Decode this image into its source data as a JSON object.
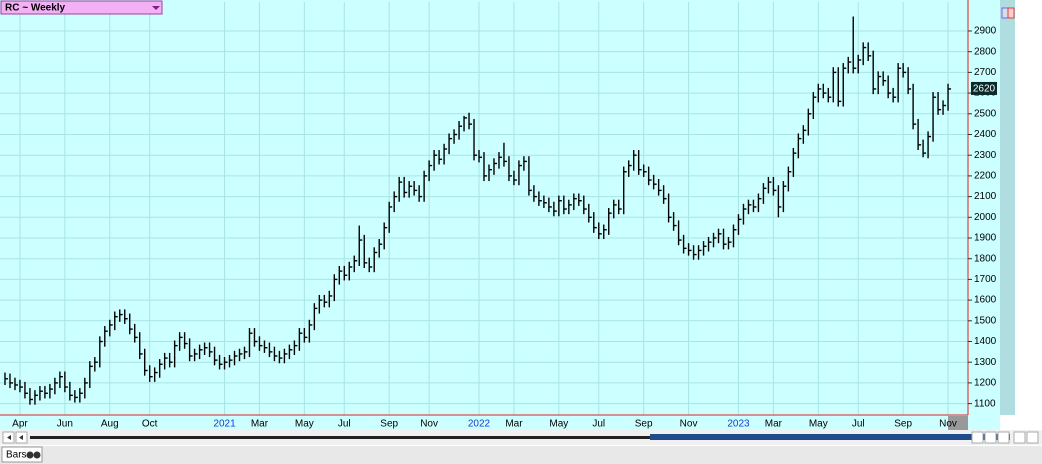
{
  "chart_data": {
    "type": "ohlc",
    "title": "RC ~ Weekly",
    "color": "#000000",
    "grid": true,
    "xlim": [
      -1,
      193
    ],
    "ylim": [
      1045,
      3040
    ],
    "yticks": [
      1100,
      1200,
      1300,
      1400,
      1500,
      1600,
      1700,
      1800,
      1900,
      2000,
      2100,
      2200,
      2300,
      2400,
      2500,
      2600,
      2700,
      2800,
      2900
    ],
    "xticks": [
      {
        "value": 3,
        "label": "Apr"
      },
      {
        "value": 12,
        "label": "Jun"
      },
      {
        "value": 21,
        "label": "Aug"
      },
      {
        "value": 29,
        "label": "Oct"
      },
      {
        "value": 44,
        "label": "2021"
      },
      {
        "value": 51,
        "label": "Mar"
      },
      {
        "value": 60,
        "label": "May"
      },
      {
        "value": 68,
        "label": "Jul"
      },
      {
        "value": 77,
        "label": "Sep"
      },
      {
        "value": 85,
        "label": "Nov"
      },
      {
        "value": 95,
        "label": "2022"
      },
      {
        "value": 102,
        "label": "Mar"
      },
      {
        "value": 111,
        "label": "May"
      },
      {
        "value": 119,
        "label": "Jul"
      },
      {
        "value": 128,
        "label": "Sep"
      },
      {
        "value": 137,
        "label": "Nov"
      },
      {
        "value": 147,
        "label": "2023"
      },
      {
        "value": 154,
        "label": "Mar"
      },
      {
        "value": 163,
        "label": "May"
      },
      {
        "value": 171,
        "label": "Jul"
      },
      {
        "value": 180,
        "label": "Sep"
      },
      {
        "value": 189,
        "label": "Nov"
      }
    ],
    "high": [
      1250,
      1245,
      1225,
      1215,
      1205,
      1175,
      1165,
      1185,
      1185,
      1195,
      1225,
      1255,
      1255,
      1205,
      1165,
      1175,
      1225,
      1305,
      1325,
      1425,
      1475,
      1505,
      1545,
      1555,
      1555,
      1535,
      1485,
      1445,
      1365,
      1285,
      1275,
      1315,
      1345,
      1345,
      1405,
      1445,
      1445,
      1415,
      1365,
      1385,
      1395,
      1395,
      1375,
      1335,
      1325,
      1335,
      1355,
      1365,
      1375,
      1465,
      1465,
      1425,
      1405,
      1395,
      1375,
      1355,
      1365,
      1385,
      1405,
      1465,
      1465,
      1505,
      1585,
      1625,
      1625,
      1645,
      1725,
      1765,
      1765,
      1785,
      1815,
      1960,
      1915,
      1805,
      1855,
      1895,
      1975,
      2075,
      2125,
      2195,
      2195,
      2175,
      2175,
      2155,
      2225,
      2275,
      2325,
      2325,
      2355,
      2405,
      2425,
      2465,
      2490,
      2505,
      2475,
      2325,
      2315,
      2255,
      2285,
      2315,
      2360,
      2295,
      2225,
      2275,
      2295,
      2295,
      2155,
      2125,
      2105,
      2095,
      2075,
      2105,
      2105,
      2085,
      2115,
      2115,
      2105,
      2065,
      2025,
      1975,
      1965,
      2045,
      2085,
      2085,
      2245,
      2275,
      2325,
      2325,
      2255,
      2245,
      2205,
      2185,
      2155,
      2115,
      2025,
      1985,
      1915,
      1875,
      1865,
      1865,
      1885,
      1905,
      1925,
      1945,
      1945,
      1905,
      1965,
      2015,
      2065,
      2085,
      2085,
      2115,
      2165,
      2195,
      2195,
      2155,
      2175,
      2245,
      2335,
      2405,
      2445,
      2525,
      2605,
      2645,
      2645,
      2625,
      2725,
      2725,
      2745,
      2775,
      2970,
      2785,
      2845,
      2845,
      2805,
      2705,
      2705,
      2685,
      2625,
      2745,
      2745,
      2725,
      2645,
      2475,
      2375,
      2415,
      2605,
      2605,
      2565,
      2645
    ],
    "low": [
      1190,
      1175,
      1165,
      1155,
      1125,
      1095,
      1095,
      1115,
      1125,
      1125,
      1145,
      1175,
      1155,
      1115,
      1105,
      1105,
      1125,
      1175,
      1255,
      1275,
      1375,
      1425,
      1455,
      1495,
      1485,
      1435,
      1395,
      1315,
      1235,
      1205,
      1205,
      1225,
      1265,
      1275,
      1275,
      1355,
      1365,
      1305,
      1305,
      1315,
      1335,
      1325,
      1285,
      1265,
      1265,
      1275,
      1285,
      1305,
      1315,
      1325,
      1375,
      1355,
      1345,
      1325,
      1305,
      1295,
      1295,
      1315,
      1335,
      1355,
      1395,
      1395,
      1455,
      1535,
      1565,
      1565,
      1595,
      1675,
      1695,
      1695,
      1735,
      1765,
      1755,
      1735,
      1735,
      1805,
      1845,
      1925,
      2025,
      2075,
      2095,
      2095,
      2105,
      2075,
      2075,
      2175,
      2225,
      2255,
      2255,
      2305,
      2355,
      2375,
      2415,
      2425,
      2275,
      2265,
      2175,
      2175,
      2205,
      2235,
      2245,
      2175,
      2155,
      2155,
      2225,
      2105,
      2075,
      2055,
      2045,
      2025,
      2005,
      2005,
      2015,
      2015,
      2035,
      2055,
      2015,
      1975,
      1925,
      1895,
      1895,
      1915,
      1995,
      2015,
      2015,
      2195,
      2225,
      2205,
      2195,
      2155,
      2135,
      2105,
      2065,
      1975,
      1935,
      1865,
      1825,
      1815,
      1795,
      1795,
      1815,
      1835,
      1855,
      1875,
      1845,
      1845,
      1855,
      1915,
      1965,
      2015,
      2025,
      2025,
      2065,
      2115,
      2105,
      2000,
      2025,
      2125,
      2195,
      2285,
      2355,
      2395,
      2475,
      2555,
      2575,
      2555,
      2555,
      2535,
      2535,
      2695,
      2695,
      2695,
      2735,
      2755,
      2595,
      2595,
      2635,
      2575,
      2555,
      2555,
      2675,
      2595,
      2425,
      2325,
      2290,
      2285,
      2365,
      2495,
      2495,
      2515
    ],
    "close": [
      1220,
      1200,
      1190,
      1180,
      1150,
      1120,
      1140,
      1160,
      1150,
      1170,
      1200,
      1230,
      1180,
      1140,
      1130,
      1150,
      1200,
      1280,
      1300,
      1400,
      1450,
      1480,
      1520,
      1530,
      1510,
      1460,
      1420,
      1340,
      1260,
      1230,
      1250,
      1290,
      1320,
      1300,
      1380,
      1420,
      1390,
      1330,
      1340,
      1360,
      1370,
      1350,
      1310,
      1290,
      1300,
      1310,
      1330,
      1340,
      1350,
      1440,
      1400,
      1380,
      1370,
      1350,
      1330,
      1320,
      1340,
      1360,
      1380,
      1440,
      1420,
      1480,
      1560,
      1600,
      1590,
      1620,
      1700,
      1740,
      1720,
      1760,
      1790,
      1890,
      1780,
      1760,
      1830,
      1870,
      1950,
      2050,
      2100,
      2170,
      2120,
      2150,
      2130,
      2100,
      2200,
      2250,
      2300,
      2280,
      2330,
      2380,
      2400,
      2440,
      2480,
      2450,
      2300,
      2290,
      2200,
      2230,
      2260,
      2290,
      2270,
      2200,
      2180,
      2250,
      2270,
      2130,
      2100,
      2080,
      2070,
      2050,
      2030,
      2080,
      2040,
      2060,
      2090,
      2080,
      2040,
      2000,
      1950,
      1920,
      1940,
      2020,
      2060,
      2040,
      2220,
      2250,
      2300,
      2230,
      2220,
      2180,
      2160,
      2130,
      2090,
      2000,
      1960,
      1890,
      1850,
      1840,
      1820,
      1840,
      1860,
      1880,
      1900,
      1920,
      1870,
      1880,
      1940,
      1990,
      2040,
      2060,
      2050,
      2090,
      2140,
      2170,
      2130,
      2050,
      2150,
      2220,
      2310,
      2380,
      2420,
      2500,
      2580,
      2620,
      2600,
      2580,
      2700,
      2560,
      2720,
      2750,
      2720,
      2760,
      2820,
      2780,
      2620,
      2680,
      2660,
      2600,
      2580,
      2720,
      2700,
      2620,
      2450,
      2350,
      2310,
      2390,
      2580,
      2520,
      2540,
      2620
    ]
  },
  "ui": {
    "tab": "Bars"
  }
}
